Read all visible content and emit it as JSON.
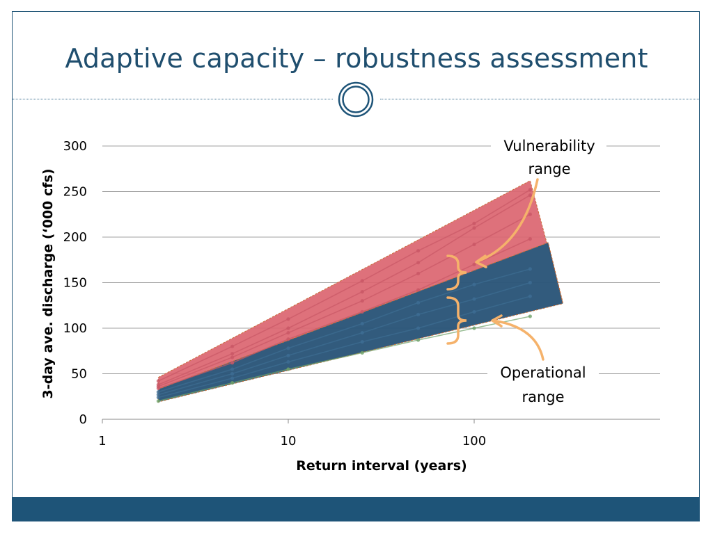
{
  "slide": {
    "title": "Adaptive capacity – robustness assessment"
  },
  "colors": {
    "accent": "#1e5478",
    "title": "#1f4e6e",
    "vulnerability_fill": "#dc6671",
    "operational_fill": "#2b5679",
    "bracket": "#f5b26b",
    "gridline": "#a0a0a0"
  },
  "chart_data": {
    "type": "area",
    "xscale": "log",
    "xlabel": "Return interval (years)",
    "ylabel": "3-day ave. discharge (‘000 cfs)",
    "xlim": [
      1,
      1000
    ],
    "ylim": [
      0,
      300
    ],
    "x_ticks": [
      1,
      10,
      100
    ],
    "x_tick_labels": [
      "1",
      "10",
      "100"
    ],
    "y_ticks": [
      0,
      50,
      100,
      150,
      200,
      250,
      300
    ],
    "y_tick_labels": [
      "0",
      "50",
      "100",
      "150",
      "200",
      "250",
      "300"
    ],
    "grid": "horizontal",
    "bands": [
      {
        "label": "Vulnerability range",
        "color": "#dc6671",
        "upper": [
          [
            2,
            46
          ],
          [
            200,
            262
          ],
          [
            300,
            128
          ]
        ],
        "lower": [
          [
            2,
            33
          ],
          [
            250,
            194
          ]
        ]
      },
      {
        "label": "Operational range",
        "color": "#2b5679",
        "upper": [
          [
            2,
            33
          ],
          [
            250,
            194
          ],
          [
            300,
            127
          ]
        ],
        "lower": [
          [
            2,
            19
          ],
          [
            300,
            127
          ]
        ]
      }
    ],
    "series": [
      {
        "color": "#c95866",
        "values": [
          [
            2,
            42
          ],
          [
            5,
            80
          ],
          [
            10,
            110
          ],
          [
            25,
            152
          ],
          [
            50,
            185
          ],
          [
            100,
            215
          ],
          [
            200,
            252
          ]
        ]
      },
      {
        "color": "#c95866",
        "values": [
          [
            2,
            38
          ],
          [
            5,
            72
          ],
          [
            10,
            100
          ],
          [
            25,
            140
          ],
          [
            50,
            172
          ],
          [
            100,
            210
          ],
          [
            200,
            246
          ]
        ]
      },
      {
        "color": "#c95866",
        "values": [
          [
            2,
            36
          ],
          [
            5,
            68
          ],
          [
            10,
            95
          ],
          [
            25,
            130
          ],
          [
            50,
            160
          ],
          [
            100,
            192
          ],
          [
            200,
            225
          ]
        ]
      },
      {
        "color": "#c95866",
        "values": [
          [
            2,
            34
          ],
          [
            5,
            62
          ],
          [
            10,
            88
          ],
          [
            25,
            118
          ],
          [
            50,
            142
          ],
          [
            100,
            170
          ],
          [
            200,
            198
          ]
        ]
      },
      {
        "color": "#3d6d93",
        "values": [
          [
            2,
            30
          ],
          [
            5,
            55
          ],
          [
            10,
            78
          ],
          [
            25,
            105
          ],
          [
            50,
            128
          ],
          [
            100,
            148
          ],
          [
            200,
            165
          ]
        ]
      },
      {
        "color": "#3d6d93",
        "values": [
          [
            2,
            27
          ],
          [
            5,
            50
          ],
          [
            10,
            70
          ],
          [
            25,
            95
          ],
          [
            50,
            115
          ],
          [
            100,
            132
          ],
          [
            200,
            150
          ]
        ]
      },
      {
        "color": "#3d6d93",
        "values": [
          [
            2,
            24
          ],
          [
            5,
            45
          ],
          [
            10,
            63
          ],
          [
            25,
            85
          ],
          [
            50,
            100
          ],
          [
            100,
            118
          ],
          [
            200,
            135
          ]
        ]
      },
      {
        "color": "#6fa36a",
        "values": [
          [
            2,
            20
          ],
          [
            5,
            40
          ],
          [
            10,
            55
          ],
          [
            25,
            73
          ],
          [
            50,
            87
          ],
          [
            100,
            100
          ],
          [
            200,
            113
          ]
        ]
      }
    ],
    "annotations": [
      {
        "text_lines": [
          "Vulnerability",
          "range"
        ],
        "points_to": "Vulnerability range"
      },
      {
        "text_lines": [
          "Operational",
          "range"
        ],
        "points_to": "Operational range"
      }
    ]
  }
}
